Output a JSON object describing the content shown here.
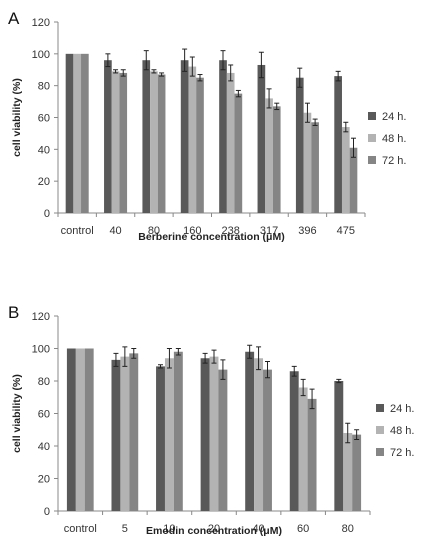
{
  "chart_data": [
    {
      "type": "bar",
      "panel_label": "A",
      "xlabel": "Berberine concentration (μM)",
      "ylabel": "cell viability (%)",
      "ylim": [
        0,
        120
      ],
      "yticks": [
        0,
        20,
        40,
        60,
        80,
        100,
        120
      ],
      "grid": false,
      "legend_position": "right",
      "categories": [
        "control",
        "40",
        "80",
        "160",
        "238",
        "317",
        "396",
        "475"
      ],
      "series": [
        {
          "name": "24 h.",
          "color": "#595959",
          "values": [
            100,
            96,
            96,
            96,
            96,
            93,
            85,
            86
          ],
          "errors": [
            0,
            4,
            6,
            7,
            6,
            8,
            6,
            3
          ]
        },
        {
          "name": "48 h.",
          "color": "#b3b3b3",
          "values": [
            100,
            89,
            89,
            92,
            88,
            72,
            63,
            54
          ],
          "errors": [
            0,
            1,
            1,
            6,
            5,
            6,
            6,
            3
          ]
        },
        {
          "name": "72 h.",
          "color": "#858585",
          "values": [
            100,
            88,
            87,
            85,
            75,
            67,
            57,
            41
          ],
          "errors": [
            0,
            2,
            1,
            2,
            2,
            2,
            2,
            6
          ]
        }
      ]
    },
    {
      "type": "bar",
      "panel_label": "B",
      "xlabel": "Emodin concentration (μM)",
      "ylabel": "cell viability (%)",
      "ylim": [
        0,
        120
      ],
      "yticks": [
        0,
        20,
        40,
        60,
        80,
        100,
        120
      ],
      "grid": false,
      "legend_position": "right",
      "categories": [
        "control",
        "5",
        "10",
        "20",
        "40",
        "60",
        "80"
      ],
      "series": [
        {
          "name": "24 h.",
          "color": "#595959",
          "values": [
            100,
            93,
            89,
            94,
            98,
            86,
            80
          ],
          "errors": [
            0,
            4,
            1,
            3,
            4,
            3,
            1
          ]
        },
        {
          "name": "48 h.",
          "color": "#b3b3b3",
          "values": [
            100,
            95,
            94,
            95,
            94,
            76,
            48
          ],
          "errors": [
            0,
            6,
            6,
            4,
            7,
            5,
            6
          ]
        },
        {
          "name": "72 h.",
          "color": "#858585",
          "values": [
            100,
            97,
            98,
            87,
            87,
            69,
            47
          ],
          "errors": [
            0,
            3,
            2,
            6,
            5,
            6,
            3
          ]
        }
      ]
    }
  ]
}
